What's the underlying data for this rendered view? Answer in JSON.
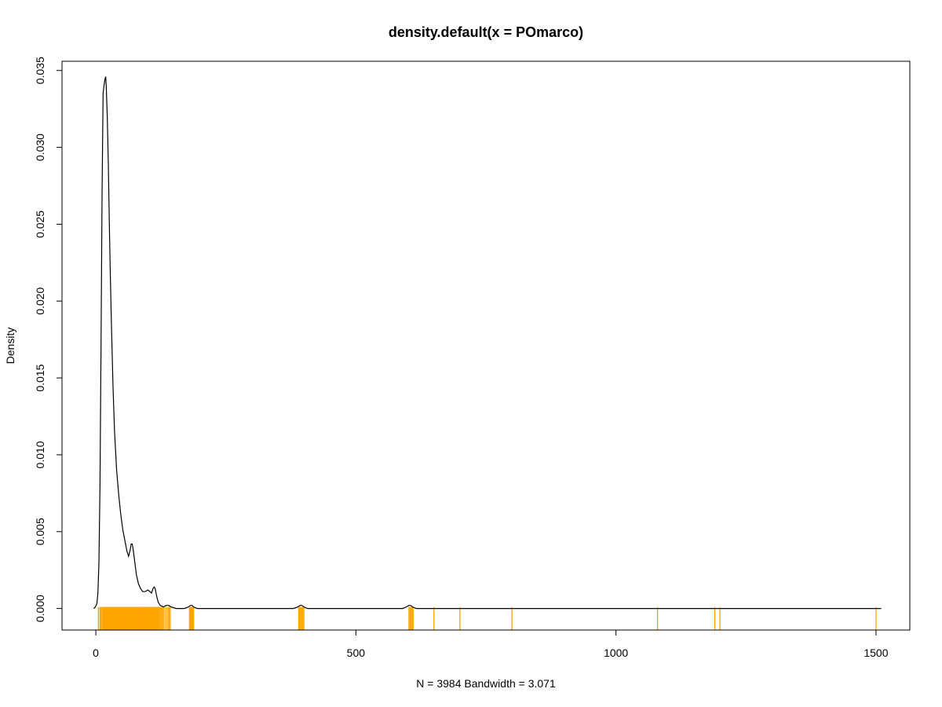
{
  "chart_data": {
    "type": "line",
    "title": "density.default(x = POmarco)",
    "xlabel": "N = 3984   Bandwidth = 3.071",
    "ylabel": "Density",
    "xlim": [
      -65,
      1565
    ],
    "ylim": [
      -0.0014,
      0.0356
    ],
    "x_ticks": [
      0,
      500,
      1000,
      1500
    ],
    "x_tick_labels": [
      "0",
      "500",
      "1000",
      "1500"
    ],
    "y_ticks": [
      0.0,
      0.005,
      0.01,
      0.015,
      0.02,
      0.025,
      0.03,
      0.035
    ],
    "y_tick_labels": [
      "0.000",
      "0.005",
      "0.010",
      "0.015",
      "0.020",
      "0.025",
      "0.030",
      "0.035"
    ],
    "grid": false,
    "colors": {
      "density_line": "#000000",
      "rug": "#FFA500",
      "zero_line": "#e6e6e6"
    },
    "series": [
      {
        "points": [
          [
            -4,
            0.0
          ],
          [
            -1,
            0.0001
          ],
          [
            2,
            0.0003
          ],
          [
            4,
            0.001
          ],
          [
            6,
            0.003
          ],
          [
            8,
            0.008
          ],
          [
            10,
            0.017
          ],
          [
            12,
            0.027
          ],
          [
            14,
            0.0335
          ],
          [
            16,
            0.0341
          ],
          [
            18,
            0.0345
          ],
          [
            19,
            0.0346
          ],
          [
            20,
            0.034
          ],
          [
            22,
            0.032
          ],
          [
            24,
            0.029
          ],
          [
            26,
            0.025
          ],
          [
            28,
            0.0215
          ],
          [
            30,
            0.0185
          ],
          [
            33,
            0.0145
          ],
          [
            36,
            0.0115
          ],
          [
            40,
            0.009
          ],
          [
            44,
            0.0074
          ],
          [
            48,
            0.0061
          ],
          [
            52,
            0.0051
          ],
          [
            56,
            0.0044
          ],
          [
            60,
            0.0037
          ],
          [
            63,
            0.0034
          ],
          [
            66,
            0.0038
          ],
          [
            68,
            0.0042
          ],
          [
            70,
            0.0042
          ],
          [
            72,
            0.0038
          ],
          [
            75,
            0.003
          ],
          [
            78,
            0.0022
          ],
          [
            82,
            0.0016
          ],
          [
            86,
            0.0013
          ],
          [
            90,
            0.0011
          ],
          [
            95,
            0.0011
          ],
          [
            100,
            0.0012
          ],
          [
            104,
            0.0011
          ],
          [
            107,
            0.001
          ],
          [
            110,
            0.0013
          ],
          [
            112,
            0.0014
          ],
          [
            114,
            0.0013
          ],
          [
            117,
            0.0008
          ],
          [
            120,
            0.0004
          ],
          [
            124,
            0.0002
          ],
          [
            130,
            0.0001
          ],
          [
            135,
            0.0002
          ],
          [
            140,
            0.0002
          ],
          [
            145,
            0.0001
          ],
          [
            155,
            0.0
          ],
          [
            170,
            0.0
          ],
          [
            178,
            0.0001
          ],
          [
            182,
            0.0002
          ],
          [
            185,
            0.0002
          ],
          [
            188,
            0.0001
          ],
          [
            195,
            0.0
          ],
          [
            380,
            0.0
          ],
          [
            388,
            0.0001
          ],
          [
            393,
            0.0002
          ],
          [
            396,
            0.0002
          ],
          [
            400,
            0.0001
          ],
          [
            407,
            0.0
          ],
          [
            590,
            0.0
          ],
          [
            597,
            0.0001
          ],
          [
            602,
            0.0002
          ],
          [
            605,
            0.0002
          ],
          [
            609,
            0.0001
          ],
          [
            616,
            0.0
          ],
          [
            1510,
            0.0
          ]
        ]
      }
    ],
    "rug": [
      5,
      8,
      10,
      12,
      14,
      15,
      16,
      17,
      18,
      19,
      20,
      21,
      22,
      23,
      24,
      25,
      26,
      27,
      28,
      29,
      30,
      31,
      32,
      33,
      34,
      35,
      36,
      37,
      38,
      39,
      40,
      41,
      42,
      43,
      44,
      45,
      46,
      47,
      48,
      49,
      50,
      51,
      52,
      53,
      54,
      55,
      56,
      57,
      58,
      59,
      60,
      61,
      62,
      63,
      64,
      65,
      66,
      67,
      68,
      69,
      70,
      71,
      72,
      73,
      74,
      75,
      76,
      77,
      78,
      79,
      80,
      81,
      82,
      83,
      84,
      85,
      86,
      87,
      88,
      89,
      90,
      91,
      92,
      93,
      94,
      95,
      96,
      97,
      98,
      99,
      100,
      101,
      102,
      103,
      104,
      105,
      106,
      107,
      108,
      109,
      110,
      111,
      112,
      113,
      114,
      115,
      116,
      117,
      118,
      119,
      120,
      121,
      122,
      124,
      126,
      128,
      130,
      133,
      136,
      139,
      141,
      143,
      180,
      181,
      182,
      183,
      184,
      185,
      186,
      187,
      188,
      390,
      392,
      394,
      396,
      398,
      400,
      602,
      604,
      606,
      608,
      610,
      650,
      700,
      800,
      1080,
      1190,
      1200,
      1500
    ]
  }
}
